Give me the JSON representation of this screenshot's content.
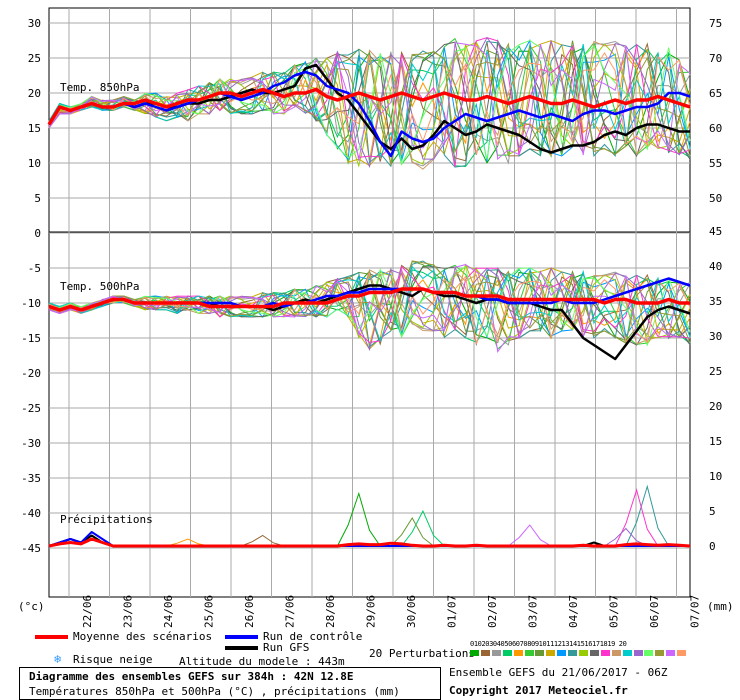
{
  "chart_data": {
    "type": "line",
    "title": "Diagramme des ensembles GEFS sur 384h : 42N 12.8E",
    "subtitle": "Températures 850hPa et 500hPa (°C) , précipitations (mm)",
    "y_left_unit": "(°c)",
    "y_right_unit": "(mm)",
    "y_left_ticks": [
      "30",
      "25",
      "20",
      "15",
      "10",
      "5",
      "0",
      "-5",
      "-10",
      "-15",
      "-20",
      "-25",
      "-30",
      "-35",
      "-40",
      "-45"
    ],
    "y_right_ticks_top": [
      "75",
      "70",
      "65",
      "60",
      "55",
      "50"
    ],
    "y_right_ticks_bottom": [
      "45",
      "40",
      "35",
      "30",
      "25",
      "20",
      "15",
      "10",
      "5",
      "0"
    ],
    "x_ticks": [
      "22/06",
      "23/06",
      "24/06",
      "25/06",
      "26/06",
      "27/06",
      "28/06",
      "29/06",
      "30/06",
      "01/07",
      "02/07",
      "03/07",
      "04/07",
      "05/07",
      "06/07",
      "07/07"
    ],
    "panels": {
      "t850": {
        "label": "Temp. 850hPa",
        "mean": [
          15.5,
          18,
          17.5,
          18,
          18.5,
          18,
          18,
          18.5,
          18.5,
          19,
          18.5,
          18,
          18.5,
          19,
          19,
          19.5,
          20,
          20,
          19.5,
          20,
          20.5,
          20,
          19.5,
          20,
          20,
          20.5,
          19.5,
          19,
          19.5,
          20,
          19.5,
          19,
          19.5,
          20,
          19.5,
          19,
          19.5,
          20,
          19.5,
          19,
          19,
          19.5,
          19,
          18.5,
          19,
          19.5,
          19,
          18.5,
          18.5,
          19,
          18.5,
          18,
          18.5,
          19,
          18.5,
          19,
          19,
          19.5,
          19,
          18.5,
          18
        ],
        "control": [
          15.5,
          18,
          17.5,
          18,
          18.5,
          18,
          18,
          18.5,
          18,
          18.5,
          18,
          17.5,
          18,
          18.5,
          19,
          19.5,
          20,
          19.5,
          19,
          19.5,
          20,
          21,
          21.5,
          22.5,
          23,
          22.5,
          21,
          20.5,
          20,
          18.5,
          16,
          13,
          11,
          14.5,
          13.5,
          13,
          13.5,
          15,
          16,
          17,
          16.5,
          16,
          16.5,
          17,
          17.5,
          17,
          16.5,
          17,
          16.5,
          16,
          17,
          17.5,
          17.5,
          17,
          17.5,
          18,
          18,
          18.5,
          20,
          20,
          19.5
        ],
        "gfs": [
          15.5,
          18,
          17.5,
          18,
          18.5,
          18,
          18,
          18.5,
          18,
          18.5,
          18.5,
          18,
          18,
          18.5,
          18.5,
          19,
          19,
          19.5,
          20,
          20.5,
          20,
          20,
          20.5,
          21,
          23.5,
          24,
          22,
          20,
          19,
          17,
          15,
          13,
          12,
          13.5,
          12,
          12.5,
          14,
          16,
          15,
          14,
          14.5,
          15.5,
          15,
          14.5,
          14,
          13,
          12,
          11.5,
          12,
          12.5,
          12.5,
          13,
          14,
          14.5,
          14,
          15,
          15.5,
          15.5,
          15,
          14.5,
          14.5
        ],
        "perturbation_spread": {
          "min": [
            15,
            17,
            17,
            17.5,
            18,
            17.5,
            17.5,
            18,
            17.5,
            17,
            16.5,
            16,
            16.5,
            16,
            17,
            17,
            17.5,
            17,
            17,
            17,
            17.5,
            17,
            17,
            18,
            17,
            16,
            14,
            12,
            10,
            9.5,
            9,
            10,
            9.5,
            9.5,
            10,
            9,
            10.5,
            11,
            9,
            9.5,
            11,
            10,
            10.5,
            10,
            11,
            12,
            11,
            11,
            11,
            12,
            11,
            11,
            12,
            11,
            12,
            11,
            12,
            12,
            11.5,
            11,
            10.5
          ],
          "max": [
            16,
            18.5,
            18,
            18.5,
            19.5,
            19,
            19,
            19.5,
            19,
            20,
            20,
            19.5,
            20,
            20.5,
            21,
            21.5,
            22,
            22,
            22,
            22.5,
            23,
            23,
            23,
            24,
            24.5,
            25,
            25,
            26,
            26,
            26.5,
            26.5,
            26,
            26,
            26,
            25.5,
            26,
            26,
            27,
            28,
            27,
            27.5,
            28,
            27.5,
            27,
            27,
            27.5,
            27,
            27.5,
            27,
            27.5,
            27,
            27.5,
            27,
            27.5,
            27,
            27,
            27,
            26.5,
            26.5,
            25,
            23
          ]
        }
      },
      "t500": {
        "label": "Temp. 500hPa",
        "mean": [
          -10.5,
          -11,
          -10.5,
          -11,
          -10.5,
          -10,
          -9.5,
          -9.5,
          -10,
          -10,
          -10,
          -10,
          -10,
          -10,
          -10,
          -10.5,
          -10.5,
          -10.5,
          -10.5,
          -10.5,
          -10.5,
          -10.5,
          -10,
          -10,
          -10,
          -10,
          -10,
          -9.5,
          -9,
          -9,
          -8.5,
          -8.5,
          -8.5,
          -8,
          -8,
          -8,
          -8.5,
          -8.5,
          -8.5,
          -9,
          -9,
          -9,
          -9,
          -9.5,
          -9.5,
          -9.5,
          -9.5,
          -9.5,
          -9.5,
          -9.5,
          -9.5,
          -9.5,
          -10,
          -9.5,
          -9.5,
          -10,
          -10,
          -10,
          -9.5,
          -10,
          -10
        ],
        "control": [
          -10.5,
          -11,
          -10.5,
          -11,
          -10.5,
          -10,
          -9.5,
          -9.5,
          -10,
          -10,
          -10,
          -10,
          -10,
          -10,
          -10,
          -10,
          -10,
          -10,
          -10.5,
          -10.5,
          -10.5,
          -10,
          -10.5,
          -10,
          -10,
          -9.5,
          -9,
          -9,
          -8.5,
          -8.5,
          -8,
          -8,
          -8,
          -8,
          -8,
          -8,
          -8.5,
          -8.5,
          -8.5,
          -9,
          -9,
          -9.5,
          -9.5,
          -10,
          -10,
          -10,
          -10,
          -10,
          -9.5,
          -10,
          -10,
          -10,
          -9.5,
          -9,
          -8.5,
          -8,
          -7.5,
          -7,
          -6.5,
          -7,
          -7.5
        ],
        "gfs": [
          -10.5,
          -11,
          -10.5,
          -11,
          -10.5,
          -10,
          -9.5,
          -9.5,
          -10,
          -10,
          -10,
          -10,
          -10,
          -10,
          -10,
          -10,
          -10.5,
          -10.5,
          -10.5,
          -10.5,
          -10.5,
          -11,
          -10.5,
          -10,
          -9.5,
          -10,
          -9.5,
          -9,
          -8.5,
          -8,
          -7.5,
          -7.5,
          -8,
          -8.5,
          -9,
          -8,
          -8.5,
          -9,
          -9,
          -9.5,
          -10,
          -9.5,
          -9.5,
          -10,
          -10,
          -10,
          -10.5,
          -11,
          -11,
          -13,
          -15,
          -16,
          -17,
          -18,
          -16,
          -14,
          -12,
          -11,
          -10.5,
          -11,
          -11.5
        ],
        "perturbation_spread": {
          "min": [
            -11,
            -11.5,
            -11,
            -11.5,
            -11,
            -10.5,
            -10,
            -10,
            -10.5,
            -11,
            -11,
            -11,
            -11.5,
            -11,
            -11.5,
            -11.5,
            -12,
            -12,
            -12,
            -12,
            -12,
            -12,
            -12,
            -12,
            -12,
            -12,
            -12,
            -11,
            -12,
            -15,
            -17,
            -16,
            -14,
            -15,
            -13,
            -14,
            -14,
            -15,
            -14,
            -15,
            -16,
            -15,
            -17,
            -16,
            -15,
            -14,
            -14,
            -15,
            -14,
            -14,
            -15,
            -15,
            -14,
            -15,
            -16,
            -16,
            -16,
            -15,
            -15,
            -15,
            -16
          ],
          "max": [
            -10,
            -10.5,
            -10,
            -10.5,
            -10,
            -9.5,
            -9,
            -9,
            -9.5,
            -9,
            -9,
            -9,
            -9,
            -9,
            -9,
            -9,
            -9,
            -9,
            -9,
            -9,
            -8.5,
            -8.5,
            -8.5,
            -8,
            -8,
            -7.5,
            -7,
            -6.5,
            -6,
            -5.5,
            -5,
            -5,
            -5,
            -4.5,
            -4,
            -4,
            -4.5,
            -5,
            -4.5,
            -4.5,
            -5,
            -5,
            -5,
            -5.5,
            -5,
            -5,
            -5.5,
            -5,
            -5.5,
            -5.5,
            -5.5,
            -6,
            -6,
            -5.5,
            -6,
            -6,
            -6,
            -6,
            -6.5,
            -7,
            -7
          ]
        }
      },
      "precip": {
        "label": "Précipitations",
        "mean": [
          0,
          0.3,
          0.5,
          0.3,
          1,
          0.5,
          0,
          0,
          0,
          0,
          0,
          0,
          0,
          0,
          0,
          0,
          0,
          0,
          0,
          0,
          0,
          0,
          0,
          0,
          0,
          0,
          0,
          0,
          0.2,
          0.3,
          0.2,
          0.2,
          0.4,
          0.3,
          0.1,
          0,
          0,
          0.1,
          0,
          0,
          0.1,
          0,
          0,
          0,
          0,
          0,
          0,
          0,
          0,
          0,
          0.1,
          0,
          0,
          0,
          0.2,
          0.3,
          0.2,
          0.1,
          0.2,
          0.1,
          0
        ],
        "control": [
          0,
          0.5,
          1,
          0.5,
          2,
          1,
          0,
          0,
          0,
          0,
          0,
          0,
          0,
          0,
          0,
          0,
          0,
          0,
          0,
          0,
          0,
          0,
          0,
          0,
          0,
          0,
          0,
          0,
          0,
          0,
          0,
          0,
          0,
          0,
          0,
          0,
          0,
          0,
          0,
          0,
          0,
          0,
          0,
          0,
          0,
          0,
          0,
          0,
          0,
          0,
          0,
          0,
          0,
          0,
          0,
          0,
          0,
          0,
          0,
          0,
          0
        ],
        "gfs": [
          0,
          0.5,
          1,
          0.5,
          1.5,
          0.5,
          0,
          0,
          0,
          0,
          0,
          0,
          0,
          0,
          0,
          0,
          0,
          0,
          0,
          0,
          0,
          0,
          0,
          0,
          0,
          0,
          0,
          0,
          0,
          0,
          0,
          0,
          0,
          0,
          0,
          0,
          0,
          0,
          0,
          0,
          0,
          0,
          0,
          0,
          0,
          0,
          0,
          0,
          0,
          0,
          0,
          0.5,
          0,
          0,
          0,
          0,
          0,
          0,
          0,
          0,
          0
        ],
        "spikes": [
          {
            "i": 29,
            "v": 7.5
          },
          {
            "i": 35,
            "v": 5
          },
          {
            "i": 34,
            "v": 4
          },
          {
            "i": 56,
            "v": 8.5
          },
          {
            "i": 55,
            "v": 8
          },
          {
            "i": 54,
            "v": 2.5
          },
          {
            "i": 45,
            "v": 3
          },
          {
            "i": 20,
            "v": 1.5
          },
          {
            "i": 13,
            "v": 1
          }
        ]
      }
    },
    "legend": {
      "mean": "Moyenne des scénarios",
      "control": "Run de contrôle",
      "gfs": "Run GFS",
      "snow": "Risque neige",
      "altitude": "Altitude du modele : 443m",
      "perturbations": "20 Perturbations",
      "pert_numbers": "01020304050607080910111213141516171819 20"
    },
    "colors": {
      "mean": "#ff0000",
      "control": "#0000ff",
      "gfs": "#000000",
      "grid": "#999999"
    },
    "run_info": "Ensemble GEFS du 21/06/2017 - 06Z",
    "copyright": "Copyright 2017 Meteociel.fr"
  }
}
